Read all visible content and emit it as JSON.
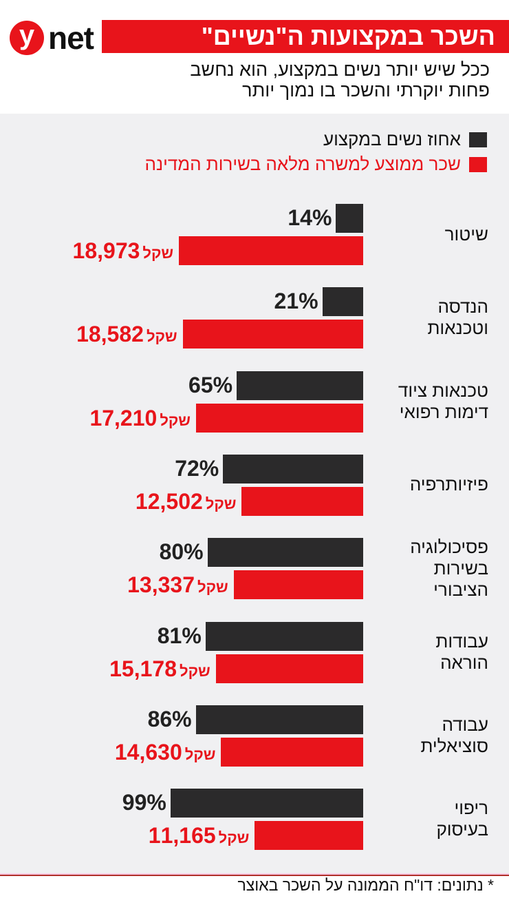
{
  "brand": {
    "y": "y",
    "net": "net"
  },
  "header": {
    "title": "השכר במקצועות ה\"נשיים\"",
    "subtitle": "ככל שיש יותר נשים במקצוע, הוא נחשב\nפחות יוקרתי והשכר בו נמוך יותר"
  },
  "footer": {
    "source": "* נתונים: דו\"ח הממונה על השכר באוצר"
  },
  "colors": {
    "black": "#2b2a2b",
    "red": "#e8141b",
    "bg": "#f0f0f2"
  },
  "chart_data": {
    "type": "bar",
    "title": "השכר במקצועות ה\"נשיים\"",
    "legend": [
      {
        "label": "אחוז נשים במקצוע",
        "color": "#2b2a2b"
      },
      {
        "label": "שכר ממוצע למשרה מלאה בשירות המדינה",
        "color": "#e8141b"
      }
    ],
    "legend_position": "top-right",
    "currency": "שקל",
    "categories": [
      "שיטור",
      "הנדסה\nוטכנאות",
      "טכנאות ציוד\nדימות רפואי",
      "פיזיותרפיה",
      "פסיכולוגיה\nבשירות\nהציבורי",
      "עבודות\nהוראה",
      "עבודה\nסוציאלית",
      "ריפוי\nבעיסוק"
    ],
    "series": [
      {
        "name": "אחוז נשים במקצוע",
        "values": [
          14,
          21,
          65,
          72,
          80,
          81,
          86,
          99
        ],
        "labels": [
          "14%",
          "21%",
          "65%",
          "72%",
          "80%",
          "81%",
          "86%",
          "99%"
        ]
      },
      {
        "name": "שכר ממוצע למשרה מלאה בשירות המדינה",
        "values": [
          18973,
          18582,
          17210,
          12502,
          13337,
          15178,
          14630,
          11165
        ],
        "labels": [
          "18,973",
          "18,582",
          "17,210",
          "12,502",
          "13,337",
          "15,178",
          "14,630",
          "11,165"
        ]
      }
    ]
  }
}
